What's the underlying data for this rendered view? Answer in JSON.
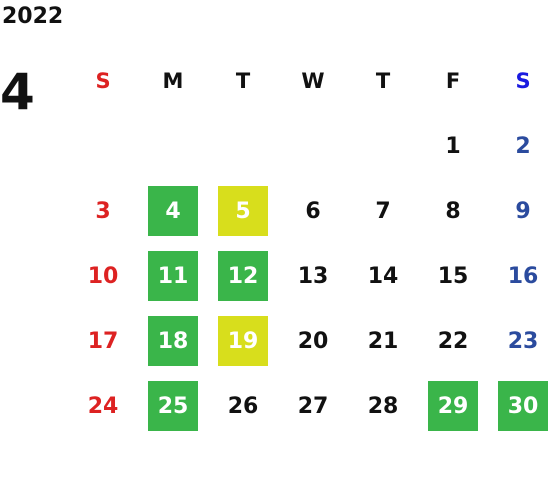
{
  "year": "2022",
  "month": "4",
  "weekdays": [
    "S",
    "M",
    "T",
    "W",
    "T",
    "F",
    "S"
  ],
  "colors": {
    "sunday": "#dd2222",
    "saturday_header": "#1a1ae0",
    "saturday": "#2b4b9e",
    "green_highlight": "#3ab54a",
    "yellow_highlight": "#d8de1c",
    "text": "#111111"
  },
  "weeks": [
    [
      {
        "day": "",
        "mark": "none"
      },
      {
        "day": "",
        "mark": "none"
      },
      {
        "day": "",
        "mark": "none"
      },
      {
        "day": "",
        "mark": "none"
      },
      {
        "day": "",
        "mark": "none"
      },
      {
        "day": "1",
        "mark": "none"
      },
      {
        "day": "2",
        "mark": "none"
      }
    ],
    [
      {
        "day": "3",
        "mark": "none"
      },
      {
        "day": "4",
        "mark": "green"
      },
      {
        "day": "5",
        "mark": "yellow"
      },
      {
        "day": "6",
        "mark": "none"
      },
      {
        "day": "7",
        "mark": "none"
      },
      {
        "day": "8",
        "mark": "none"
      },
      {
        "day": "9",
        "mark": "none"
      }
    ],
    [
      {
        "day": "10",
        "mark": "none"
      },
      {
        "day": "11",
        "mark": "green"
      },
      {
        "day": "12",
        "mark": "green"
      },
      {
        "day": "13",
        "mark": "none"
      },
      {
        "day": "14",
        "mark": "none"
      },
      {
        "day": "15",
        "mark": "none"
      },
      {
        "day": "16",
        "mark": "none"
      }
    ],
    [
      {
        "day": "17",
        "mark": "none"
      },
      {
        "day": "18",
        "mark": "green"
      },
      {
        "day": "19",
        "mark": "yellow"
      },
      {
        "day": "20",
        "mark": "none"
      },
      {
        "day": "21",
        "mark": "none"
      },
      {
        "day": "22",
        "mark": "none"
      },
      {
        "day": "23",
        "mark": "none"
      }
    ],
    [
      {
        "day": "24",
        "mark": "none"
      },
      {
        "day": "25",
        "mark": "green"
      },
      {
        "day": "26",
        "mark": "none"
      },
      {
        "day": "27",
        "mark": "none"
      },
      {
        "day": "28",
        "mark": "none"
      },
      {
        "day": "29",
        "mark": "green"
      },
      {
        "day": "30",
        "mark": "green"
      }
    ]
  ]
}
